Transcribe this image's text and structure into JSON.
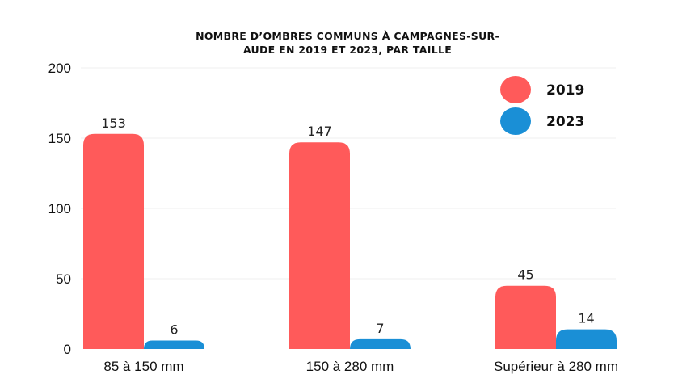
{
  "chart_data": {
    "type": "bar",
    "title_lines": [
      "NOMBRE D’OMBRES COMMUNS À CAMPAGNES-SUR-",
      "AUDE EN 2019 ET 2023, PAR TAILLE"
    ],
    "xlabel": "",
    "ylabel": "",
    "categories": [
      "85 à 150 mm",
      "150 à 280 mm",
      "Supérieur à 280 mm"
    ],
    "series": [
      {
        "name": "2019",
        "values": [
          153,
          147,
          45
        ],
        "color": "#ff5a5a"
      },
      {
        "name": "2023",
        "values": [
          6,
          7,
          14
        ],
        "color": "#1a8fd6"
      }
    ],
    "ylim": [
      0,
      200
    ],
    "yticks": [
      0,
      50,
      100,
      150,
      200
    ],
    "grid": true,
    "legend_position": "top-right"
  }
}
